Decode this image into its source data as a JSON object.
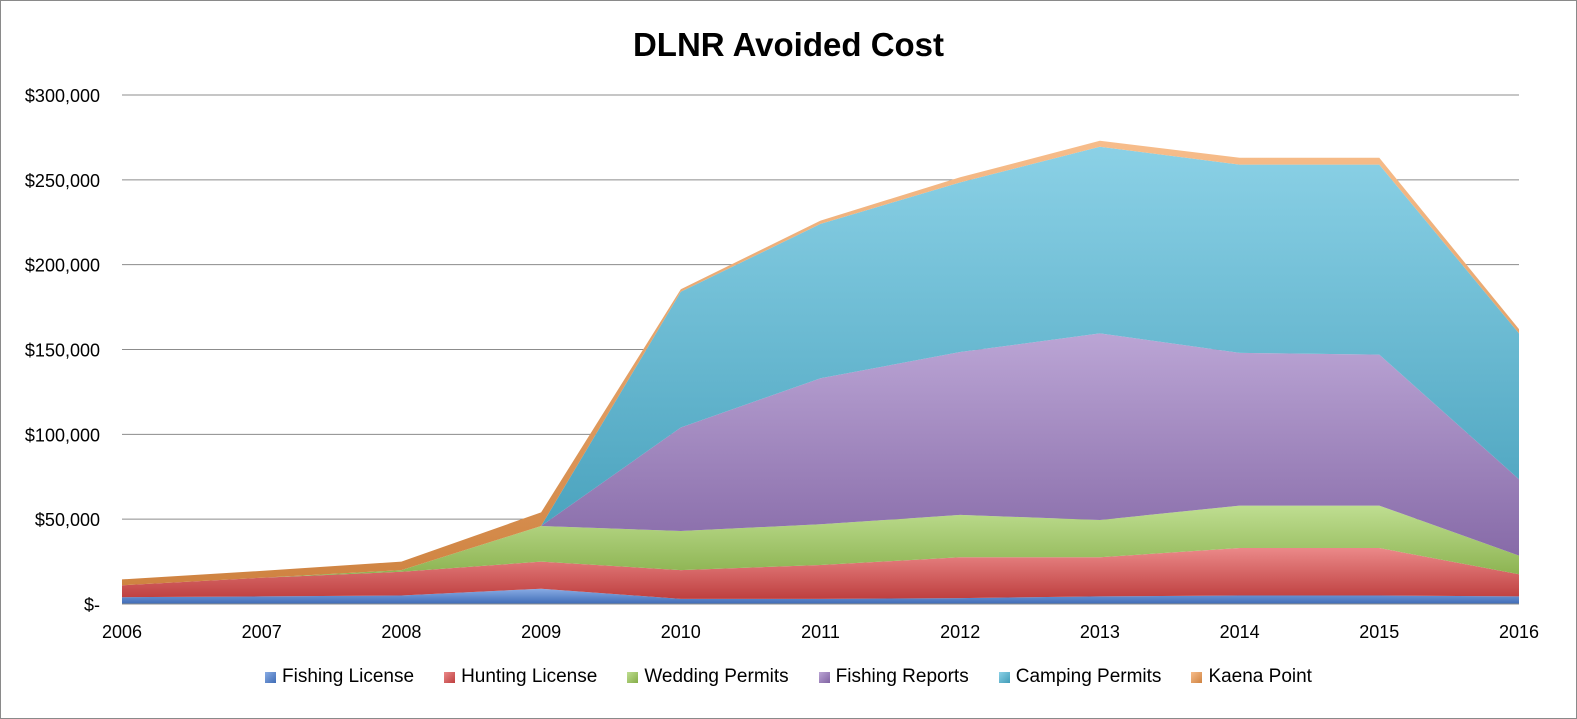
{
  "chart_data": {
    "type": "area",
    "stacked": true,
    "title": "DLNR Avoided Cost",
    "xlabel": "",
    "ylabel": "",
    "ylim": [
      0,
      300000
    ],
    "y_ticks": [
      0,
      50000,
      100000,
      150000,
      200000,
      250000,
      300000
    ],
    "y_tick_labels": [
      "$-",
      "$50,000",
      "$100,000",
      "$150,000",
      "$200,000",
      "$250,000",
      "$300,000"
    ],
    "grid": true,
    "legend_position": "bottom",
    "categories": [
      "2006",
      "2007",
      "2008",
      "2009",
      "2010",
      "2011",
      "2012",
      "2013",
      "2014",
      "2015",
      "2016"
    ],
    "series": [
      {
        "name": "Fishing License",
        "color": "#4a7fd6",
        "values": [
          4000,
          4500,
          5000,
          9000,
          3000,
          3000,
          3500,
          4500,
          5000,
          5000,
          4500
        ]
      },
      {
        "name": "Hunting License",
        "color": "#e04a4a",
        "values": [
          7000,
          11000,
          14000,
          16000,
          17000,
          20000,
          24000,
          23000,
          28000,
          28000,
          13000
        ]
      },
      {
        "name": "Wedding Permits",
        "color": "#9ccc55",
        "values": [
          0,
          0,
          1000,
          21000,
          23000,
          24000,
          25000,
          22000,
          25000,
          25000,
          11000
        ]
      },
      {
        "name": "Fishing Reports",
        "color": "#9675bf",
        "values": [
          0,
          0,
          0,
          0,
          61000,
          86000,
          96000,
          110000,
          90000,
          89000,
          45000
        ]
      },
      {
        "name": "Camping Permits",
        "color": "#4cb8d8",
        "values": [
          0,
          0,
          0,
          0,
          80000,
          91000,
          100000,
          110000,
          111000,
          112000,
          86000
        ]
      },
      {
        "name": "Kaena Point",
        "color": "#f39a4c",
        "values": [
          3500,
          4000,
          5000,
          8000,
          1500,
          2000,
          3000,
          3500,
          4000,
          4000,
          2500
        ]
      }
    ]
  }
}
